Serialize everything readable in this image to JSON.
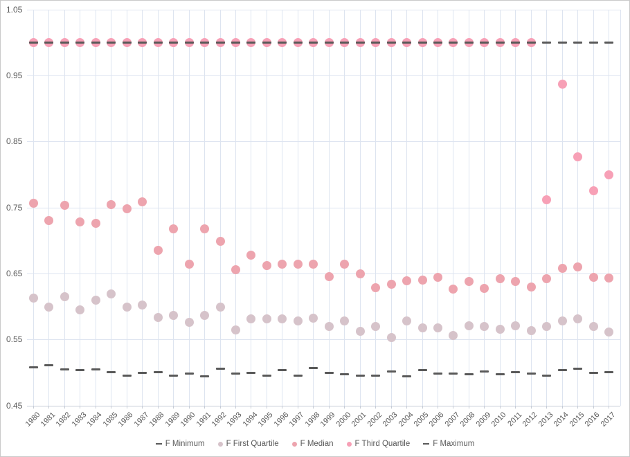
{
  "chart_data": {
    "type": "scatter",
    "x": [
      1980,
      1981,
      1982,
      1983,
      1984,
      1985,
      1986,
      1987,
      1988,
      1989,
      1990,
      1991,
      1992,
      1993,
      1994,
      1995,
      1996,
      1997,
      1998,
      1999,
      2000,
      2001,
      2002,
      2003,
      2004,
      2005,
      2006,
      2007,
      2008,
      2009,
      2010,
      2011,
      2012,
      2013,
      2014,
      2015,
      2016,
      2017
    ],
    "series": [
      {
        "name": "F Minimum",
        "marker": "dash",
        "color": "#595959",
        "values": [
          0.508,
          0.511,
          0.505,
          0.504,
          0.505,
          0.501,
          0.496,
          0.5,
          0.501,
          0.496,
          0.499,
          0.495,
          0.506,
          0.499,
          0.5,
          0.496,
          0.504,
          0.496,
          0.507,
          0.5,
          0.498,
          0.496,
          0.496,
          0.502,
          0.495,
          0.504,
          0.499,
          0.499,
          0.498,
          0.502,
          0.498,
          0.501,
          0.499,
          0.496,
          0.504,
          0.506,
          0.5,
          0.501
        ]
      },
      {
        "name": "F First Quartile",
        "marker": "circle",
        "color": "#d6c3ca",
        "values": [
          0.613,
          0.599,
          0.615,
          0.595,
          0.61,
          0.619,
          0.599,
          0.603,
          0.584,
          0.587,
          0.576,
          0.587,
          0.599,
          0.565,
          0.582,
          0.582,
          0.582,
          0.578,
          0.583,
          0.57,
          0.579,
          0.563,
          0.57,
          0.553,
          0.578,
          0.568,
          0.568,
          0.556,
          0.571,
          0.57,
          0.566,
          0.571,
          0.564,
          0.57,
          0.578,
          0.582,
          0.57,
          0.562
        ]
      },
      {
        "name": "F Median",
        "marker": "circle",
        "color": "#eda4ae",
        "values": [
          0.757,
          0.731,
          0.754,
          0.729,
          0.726,
          0.755,
          0.748,
          0.759,
          0.686,
          0.718,
          0.664,
          0.718,
          0.699,
          0.656,
          0.678,
          0.662,
          0.664,
          0.665,
          0.665,
          0.646,
          0.664,
          0.65,
          0.629,
          0.634,
          0.639,
          0.64,
          0.645,
          0.627,
          0.638,
          0.628,
          0.642,
          0.638,
          0.63,
          0.643,
          0.658,
          0.66,
          0.645,
          0.644
        ]
      },
      {
        "name": "F Third Quartile",
        "marker": "circle",
        "color": "#f7a0b6",
        "values": [
          1.0,
          1.0,
          1.0,
          1.0,
          1.0,
          1.0,
          1.0,
          1.0,
          1.0,
          1.0,
          1.0,
          1.0,
          1.0,
          1.0,
          1.0,
          1.0,
          1.0,
          1.0,
          1.0,
          1.0,
          1.0,
          1.0,
          1.0,
          1.0,
          1.0,
          1.0,
          1.0,
          1.0,
          1.0,
          1.0,
          1.0,
          1.0,
          1.0,
          0.762,
          0.937,
          0.827,
          0.776,
          0.8
        ]
      },
      {
        "name": "F Maximum",
        "marker": "dash",
        "color": "#595959",
        "values": [
          1.0,
          1.0,
          1.0,
          1.0,
          1.0,
          1.0,
          1.0,
          1.0,
          1.0,
          1.0,
          1.0,
          1.0,
          1.0,
          1.0,
          1.0,
          1.0,
          1.0,
          1.0,
          1.0,
          1.0,
          1.0,
          1.0,
          1.0,
          1.0,
          1.0,
          1.0,
          1.0,
          1.0,
          1.0,
          1.0,
          1.0,
          1.0,
          1.0,
          1.0,
          1.0,
          1.0,
          1.0,
          1.0
        ]
      }
    ],
    "ylim": [
      0.45,
      1.05
    ],
    "yticks": [
      "1.05",
      "0.95",
      "0.85",
      "0.75",
      "0.65",
      "0.55",
      "0.45"
    ],
    "grid": true,
    "legend_position": "bottom"
  },
  "colors": {
    "gridline": "#dde4f0",
    "axis_line": "#c6ccd6",
    "tick_text": "#595959",
    "dash_series": "#595959",
    "first_quartile": "#d6c3ca",
    "median": "#eda4ae",
    "third_quartile": "#f7a0b6"
  }
}
